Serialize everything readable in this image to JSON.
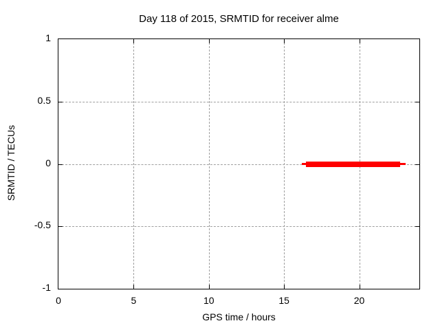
{
  "window": {
    "background": "#ffffff"
  },
  "chart_data": {
    "type": "line",
    "title": "Day 118 of 2015, SRMTID for receiver alme",
    "xlabel": "GPS time / hours",
    "ylabel": "SRMTID / TECUs",
    "xlim": [
      0,
      24
    ],
    "ylim": [
      -1,
      1
    ],
    "x_ticks": [
      0,
      5,
      10,
      15,
      20
    ],
    "y_ticks": [
      1,
      0.5,
      0,
      -0.5,
      -1
    ],
    "grid": true,
    "grid_style": "dashed",
    "legend_position": "none",
    "series": [
      {
        "name": "SRMTID",
        "color": "#ff0000",
        "shape": "flat horizontal segment",
        "x": [
          16.2,
          23.1
        ],
        "y": [
          0,
          0
        ],
        "thick_x": [
          16.45,
          22.7
        ]
      }
    ]
  },
  "colors": {
    "axis": "#000000",
    "grid": "#9e9e9e",
    "series": "#ff0000",
    "text": "#000000"
  }
}
